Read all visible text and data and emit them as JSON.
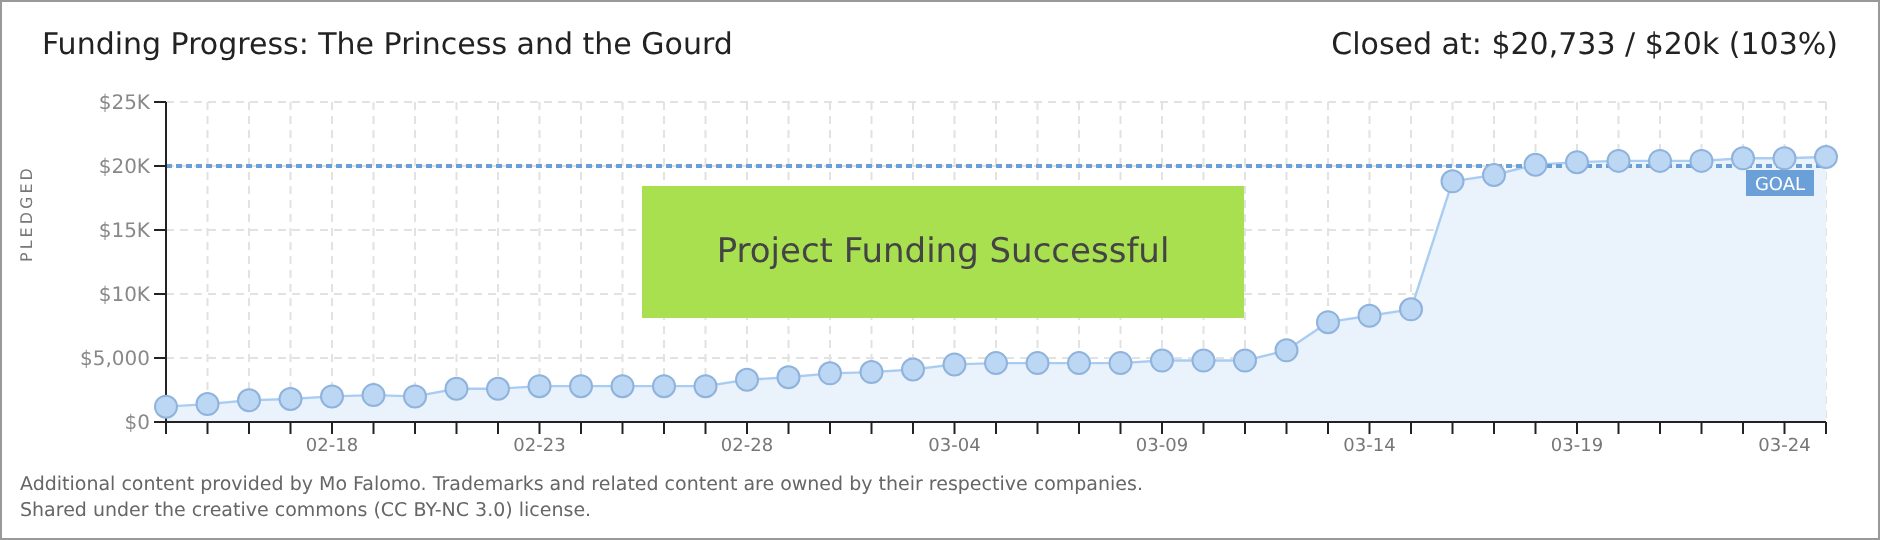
{
  "chart_data": {
    "type": "area",
    "title": "Funding Progress: The Princess and the Gourd",
    "subtitle": "Closed at: $20,733 / $20k (103%)",
    "ylabel": "PLEDGED",
    "categories": [
      null,
      null,
      null,
      null,
      "02-18",
      null,
      null,
      null,
      null,
      "02-23",
      null,
      null,
      null,
      null,
      "02-28",
      null,
      null,
      null,
      null,
      "03-04",
      null,
      null,
      null,
      null,
      "03-09",
      null,
      null,
      null,
      null,
      "03-14",
      null,
      null,
      null,
      null,
      "03-19",
      null,
      null,
      null,
      null,
      "03-24",
      null
    ],
    "series": [
      {
        "color": "#a9cdf2",
        "values": [
          1200,
          1400,
          1700,
          1800,
          2000,
          2100,
          2000,
          2600,
          2600,
          2800,
          2800,
          2800,
          2800,
          2800,
          3300,
          3500,
          3800,
          3900,
          4100,
          4500,
          4600,
          4600,
          4600,
          4600,
          4800,
          4800,
          4800,
          5600,
          7800,
          8300,
          8800,
          18800,
          19300,
          20100,
          20300,
          20400,
          20400,
          20400,
          20600,
          20600,
          20700
        ]
      }
    ],
    "ylim": [
      0,
      25000
    ],
    "yticks": [
      {
        "value": 0,
        "label": "$0"
      },
      {
        "value": 5000,
        "label": "$5,000"
      },
      {
        "value": 10000,
        "label": "$10K"
      },
      {
        "value": 15000,
        "label": "$15K"
      },
      {
        "value": 20000,
        "label": "$20K"
      },
      {
        "value": 25000,
        "label": "$25K"
      }
    ],
    "ref_lines": [
      {
        "axis": "y",
        "value": 20000,
        "label": "GOAL",
        "color": "#6a9fd8",
        "line_style": "dotted"
      }
    ],
    "annotations": [
      "Project Funding Successful",
      "Additional content provided by Mo Falomo. Trademarks and related content are owned by their respective companies.",
      "Shared under the creative commons (CC BY-NC 3.0) license."
    ],
    "grid": true,
    "marker": "circle"
  }
}
